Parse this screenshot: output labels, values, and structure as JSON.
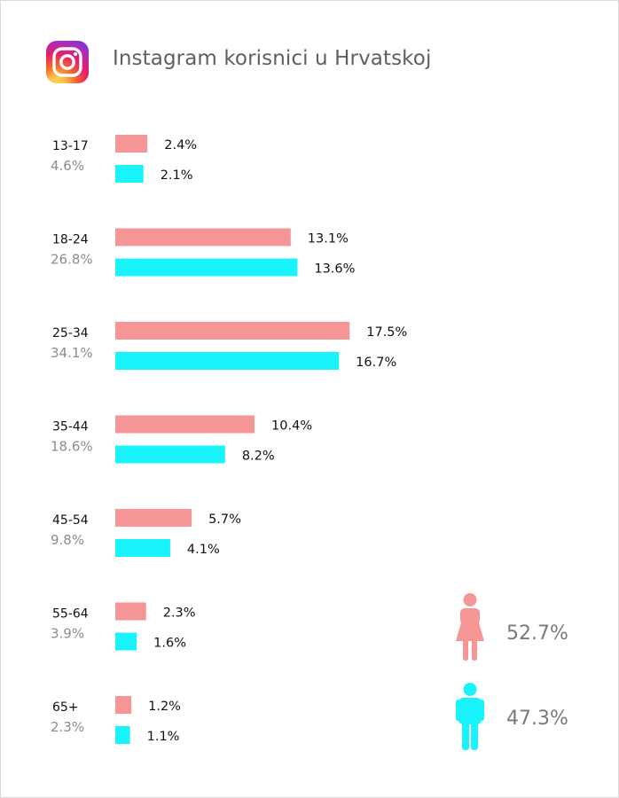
{
  "title": "Instagram korisnici u Hrvatskoj",
  "colors": {
    "female": "#f69595",
    "male": "#19f4fc",
    "label": "#111111",
    "sublabel": "#8c8c8c",
    "title": "#5f5f5f"
  },
  "chart_data": {
    "type": "bar",
    "orientation": "horizontal",
    "title": "Instagram korisnici u Hrvatskoj",
    "categories": [
      "13-17",
      "18-24",
      "25-34",
      "35-44",
      "45-54",
      "55-64",
      "65+"
    ],
    "category_totals": [
      "4.6%",
      "26.8%",
      "34.1%",
      "18.6%",
      "9.8%",
      "3.9%",
      "2.3%"
    ],
    "series": [
      {
        "key": "female",
        "color": "#f69595",
        "values": [
          2.4,
          13.1,
          17.5,
          10.4,
          5.7,
          2.3,
          1.2
        ],
        "labels": [
          "2.4%",
          "13.1%",
          "17.5%",
          "10.4%",
          "5.7%",
          "2.3%",
          "1.2%"
        ]
      },
      {
        "key": "male",
        "color": "#19f4fc",
        "values": [
          2.1,
          13.6,
          16.7,
          8.2,
          4.1,
          1.6,
          1.1
        ],
        "labels": [
          "2.1%",
          "13.6%",
          "16.7%",
          "8.2%",
          "4.1%",
          "1.6%",
          "1.1%"
        ]
      }
    ],
    "grid": false
  },
  "gender": {
    "female": {
      "icon": "female-icon",
      "value": "52.7%"
    },
    "male": {
      "icon": "male-icon",
      "value": "47.3%"
    }
  }
}
